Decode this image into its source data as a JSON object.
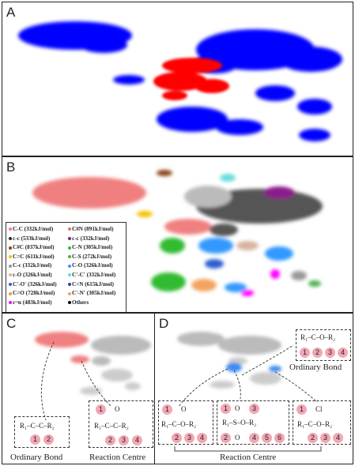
{
  "panels": {
    "a": {
      "label": "A"
    },
    "b": {
      "label": "B"
    },
    "c": {
      "label": "C",
      "ordinary_caption": "Ordinary  Bond",
      "reaction_caption": "Reaction Centre"
    },
    "d": {
      "label": "D",
      "ordinary_caption": "Ordinary  Bond",
      "reaction_caption": "Reaction Centre"
    }
  },
  "legend_left": [
    {
      "color": "#f08080",
      "text": "C-C (332kJ/mol)"
    },
    {
      "color": "#2a2a2a",
      "text": "c-c (533kJ/mol)"
    },
    {
      "color": "#8b4513",
      "text": "C#C (837kJ/mol)"
    },
    {
      "color": "#f2c200",
      "text": "C=C (611kJ/mol)"
    },
    {
      "color": "#999999",
      "text": "C-c (332kJ/mol)"
    },
    {
      "color": "#d8b4a0",
      "text": "c-O (326kJ/mol)"
    },
    {
      "color": "#2f5fd0",
      "text": "C'-O' (326kJ/mol)"
    },
    {
      "color": "#e0a050",
      "text": "C=O (728kJ/mol)"
    },
    {
      "color": "#ff00ff",
      "text": "c~n (483kJ/mol)"
    }
  ],
  "legend_right": [
    {
      "color": "#e07070",
      "text": "C#N (891kJ/mol)"
    },
    {
      "color": "#8b1a8b",
      "text": "c-c (332kJ/mol)"
    },
    {
      "color": "#33bb33",
      "text": "C-N (305kJ/mol)"
    },
    {
      "color": "#4caf50",
      "text": "C-S (272kJ/mol)"
    },
    {
      "color": "#3399ff",
      "text": "C-O (326kJ/mol)"
    },
    {
      "color": "#66dddd",
      "text": "C'-C' (332kJ/mol)"
    },
    {
      "color": "#2244aa",
      "text": "C=N (615kJ/mol)"
    },
    {
      "color": "#f4a460",
      "text": "C'-N' (305kJ/mol)"
    },
    {
      "color": "#000000",
      "text": "Others"
    }
  ],
  "chem": {
    "c_ordinary": "R₁–C–C–R₂",
    "c_reaction_o": "O",
    "c_reaction": "R₁–C–C–R₂",
    "d_ordinary": "R₁–C–O–R₂",
    "d_r1_o": "O",
    "d_r1": "R₁–C–O–R₂",
    "d_r2_top": "O",
    "d_r2_bottom": "O",
    "d_r2": "R₁–S–O–R₂",
    "d_r3_cl": "Cl",
    "d_r3": "R₁–C–O–R₂"
  },
  "circles": {
    "c_ord": [
      "1",
      "2"
    ],
    "c_rc": [
      "1",
      "2",
      "3",
      "4"
    ],
    "d_ord": [
      "1",
      "2",
      "3",
      "4"
    ],
    "d_r1": [
      "1",
      "2",
      "3",
      "4"
    ],
    "d_r2": [
      "1",
      "2",
      "3",
      "4",
      "5",
      "6"
    ],
    "d_r3": [
      "1",
      "2",
      "3",
      "4"
    ]
  },
  "colors": {
    "blue": "#0000ff",
    "red": "#ff0000",
    "salmon": "#f08080",
    "pink_circle": "#f2a7b3",
    "highlight_blue": "#3a8cf0"
  }
}
